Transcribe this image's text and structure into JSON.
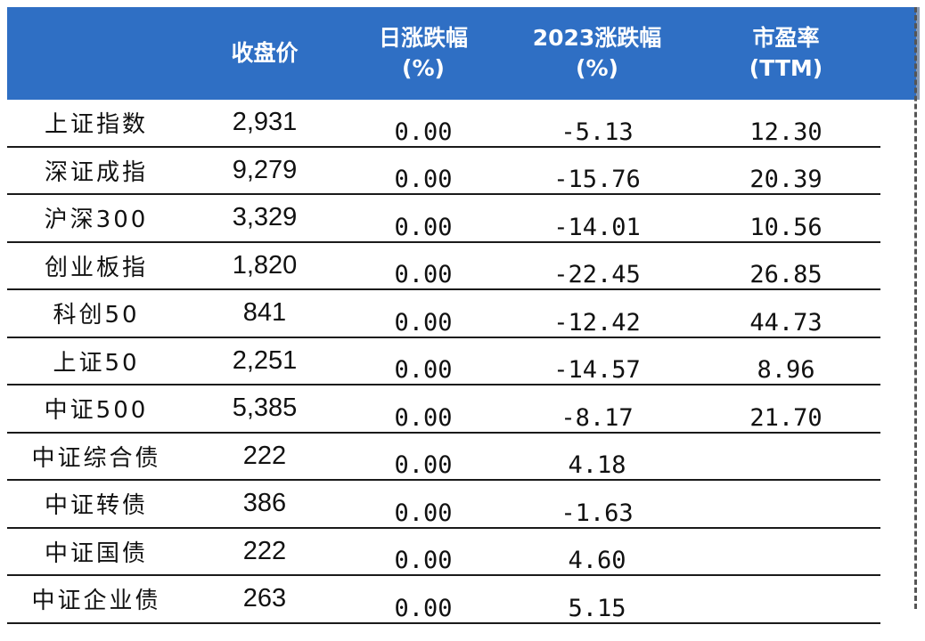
{
  "table": {
    "headers": {
      "name": "",
      "close": "收盘价",
      "daily": "日涨跌幅\n(%)",
      "ytd": "2023涨跌幅\n(%)",
      "pe": "市盈率\n(TTM)"
    },
    "rows": [
      {
        "name": "上证指数",
        "close": "2,931",
        "daily": "0.00",
        "ytd": "-5.13",
        "pe": "12.30"
      },
      {
        "name": "深证成指",
        "close": "9,279",
        "daily": "0.00",
        "ytd": "-15.76",
        "pe": "20.39"
      },
      {
        "name": "沪深300",
        "close": "3,329",
        "daily": "0.00",
        "ytd": "-14.01",
        "pe": "10.56"
      },
      {
        "name": "创业板指",
        "close": "1,820",
        "daily": "0.00",
        "ytd": "-22.45",
        "pe": "26.85"
      },
      {
        "name": "科创50",
        "close": "841",
        "daily": "0.00",
        "ytd": "-12.42",
        "pe": "44.73"
      },
      {
        "name": "上证50",
        "close": "2,251",
        "daily": "0.00",
        "ytd": "-14.57",
        "pe": "8.96"
      },
      {
        "name": "中证500",
        "close": "5,385",
        "daily": "0.00",
        "ytd": "-8.17",
        "pe": "21.70"
      },
      {
        "name": "中证综合债",
        "close": "222",
        "daily": "0.00",
        "ytd": "4.18",
        "pe": ""
      },
      {
        "name": "中证转债",
        "close": "386",
        "daily": "0.00",
        "ytd": "-1.63",
        "pe": ""
      },
      {
        "name": "中证国债",
        "close": "222",
        "daily": "0.00",
        "ytd": "4.60",
        "pe": ""
      },
      {
        "name": "中证企业债",
        "close": "263",
        "daily": "0.00",
        "ytd": "5.15",
        "pe": ""
      }
    ]
  },
  "colors": {
    "header_bg": "#2f6fc4",
    "negative": "#2e8b2e",
    "positive": "#e8212a"
  }
}
